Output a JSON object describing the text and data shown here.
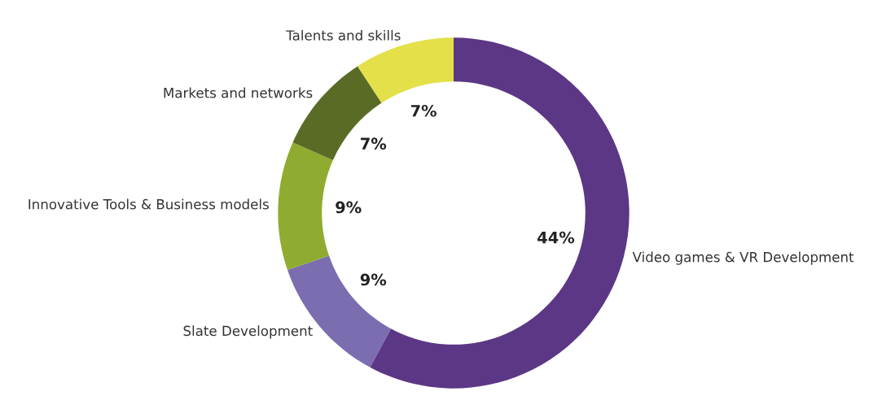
{
  "chart_data": {
    "type": "donut",
    "categories": [
      "Video games & VR Development",
      "Slate Development",
      "Innovative Tools & Business models",
      "Markets and networks",
      "Talents and skills"
    ],
    "values": [
      44,
      9,
      9,
      7,
      7
    ],
    "value_labels": [
      "44%",
      "9%",
      "9%",
      "7%",
      "7%"
    ],
    "colors": [
      "#5c3785",
      "#7b6db0",
      "#8fac30",
      "#5a6b26",
      "#e3e04a"
    ],
    "legend": false
  }
}
